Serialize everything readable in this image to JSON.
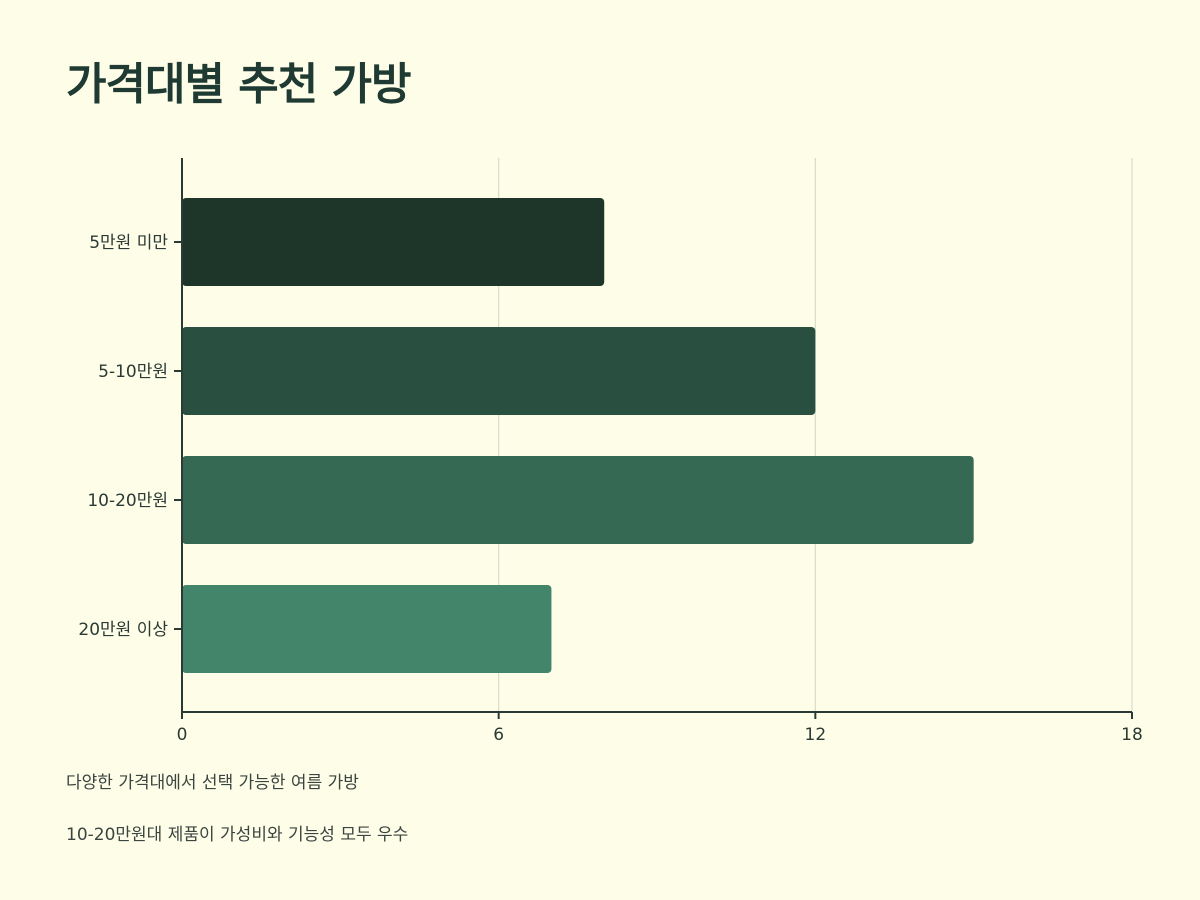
{
  "title": "가격대별 추천 가방",
  "notes": [
    "다양한 가격대에서 선택 가능한 여름 가방",
    "10-20만원대 제품이 가성비와 기능성 모두 우수"
  ],
  "colors": {
    "background": "#fefde8",
    "bars": [
      "#1e3529",
      "#284f3f",
      "#356953",
      "#43856a"
    ],
    "axis": "#2b3a35",
    "grid": "#d9dccb"
  },
  "chart_data": {
    "type": "bar",
    "orientation": "horizontal",
    "categories": [
      "5만원 미만",
      "5-10만원",
      "10-20만원",
      "20만원 이상"
    ],
    "values": [
      8,
      12,
      15,
      7
    ],
    "xlim": [
      0,
      18
    ],
    "xticks": [
      0,
      6,
      12,
      18
    ],
    "grid": true,
    "title": "가격대별 추천 가방",
    "xlabel": "",
    "ylabel": ""
  }
}
